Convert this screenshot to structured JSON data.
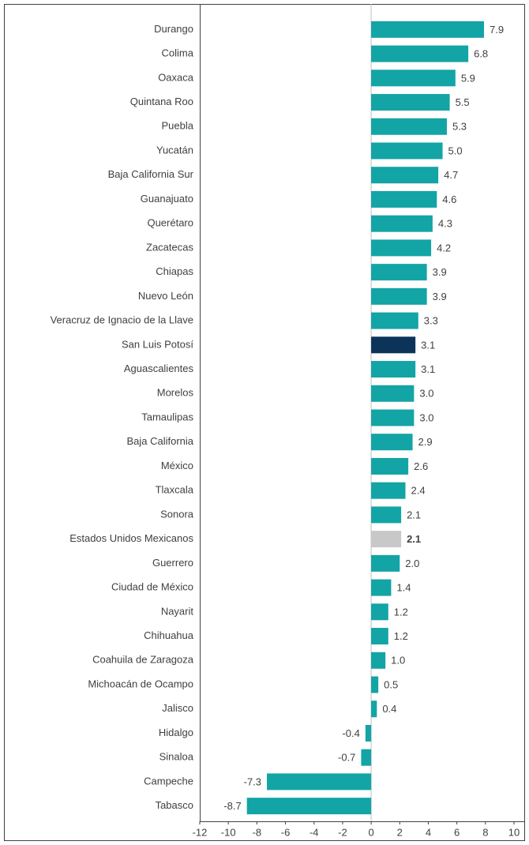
{
  "chart_data": {
    "type": "barh",
    "categories": [
      "Durango",
      "Colima",
      "Oaxaca",
      "Quintana Roo",
      "Puebla",
      "Yucatán",
      "Baja California Sur",
      "Guanajuato",
      "Querétaro",
      "Zacatecas",
      "Chiapas",
      "Nuevo León",
      "Veracruz de Ignacio de la Llave",
      "San Luis Potosí",
      "Aguascalientes",
      "Morelos",
      "Tamaulipas",
      "Baja California",
      "México",
      "Tlaxcala",
      "Sonora",
      "Estados Unidos Mexicanos",
      "Guerrero",
      "Ciudad de México",
      "Nayarit",
      "Chihuahua",
      "Coahuila de Zaragoza",
      "Michoacán de Ocampo",
      "Jalisco",
      "Hidalgo",
      "Sinaloa",
      "Campeche",
      "Tabasco"
    ],
    "values": [
      7.9,
      6.8,
      5.9,
      5.5,
      5.3,
      5.0,
      4.7,
      4.6,
      4.3,
      4.2,
      3.9,
      3.9,
      3.3,
      3.1,
      3.1,
      3.0,
      3.0,
      2.9,
      2.6,
      2.4,
      2.1,
      2.1,
      2.0,
      1.4,
      1.2,
      1.2,
      1.0,
      0.5,
      0.4,
      -0.4,
      -0.7,
      -7.3,
      -8.7
    ],
    "value_labels": [
      "7.9",
      "6.8",
      "5.9",
      "5.5",
      "5.3",
      "5.0",
      "4.7",
      "4.6",
      "4.3",
      "4.2",
      "3.9",
      "3.9",
      "3.3",
      "3.1",
      "3.1",
      "3.0",
      "3.0",
      "2.9",
      "2.6",
      "2.4",
      "2.1",
      "2.1",
      "2.0",
      "1.4",
      "1.2",
      "1.2",
      "1.0",
      "0.5",
      "0.4",
      "-0.4",
      "-0.7",
      "-7.3",
      "-8.7"
    ],
    "color": "#13a4a6",
    "colors": {
      "13": "#0c3459",
      "21": "#c8c8c8"
    },
    "xlim": [
      -12,
      10
    ],
    "xticks": [
      -12,
      -10,
      -8,
      -6,
      -4,
      -2,
      0,
      2,
      4,
      6,
      8,
      10
    ]
  }
}
